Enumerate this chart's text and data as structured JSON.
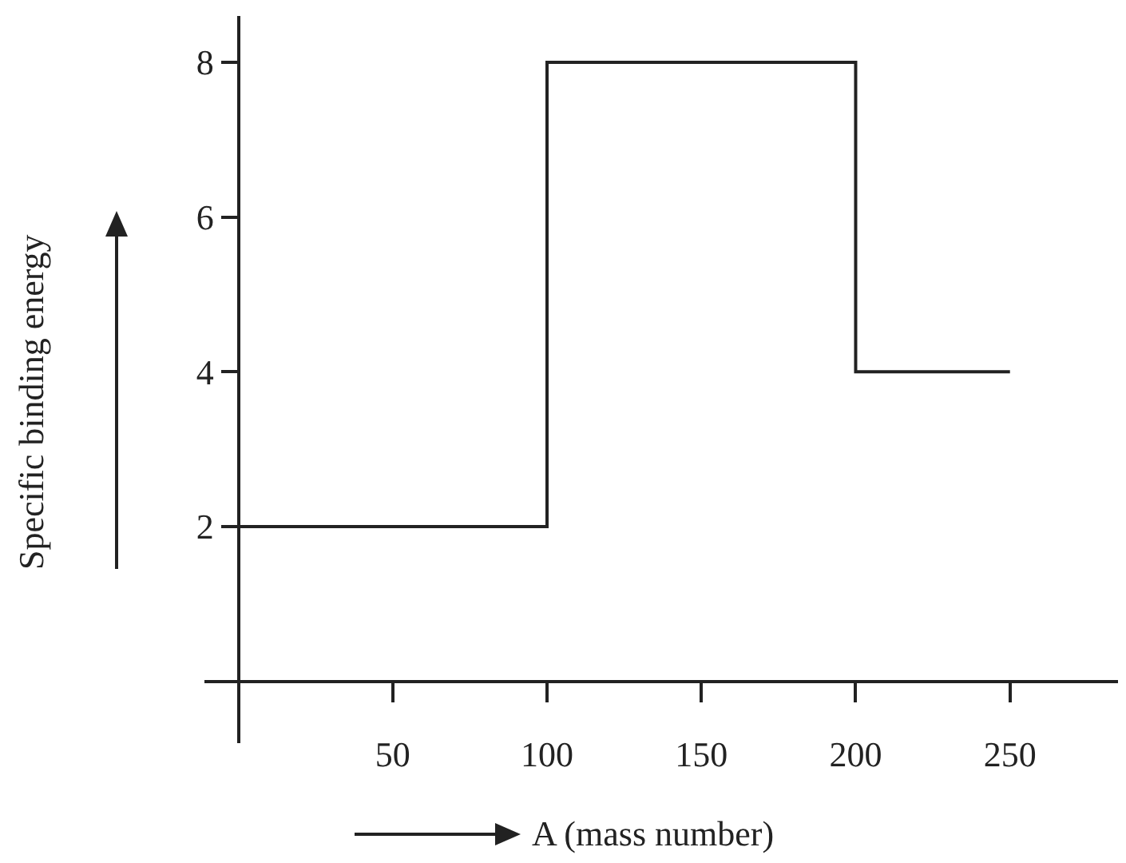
{
  "chart_data": {
    "type": "step",
    "xlabel": "A (mass number)",
    "ylabel": "Specific binding energy",
    "x": [
      0,
      100,
      200,
      250
    ],
    "series": [
      {
        "color": "#222222",
        "values": [
          2,
          8,
          4,
          4
        ]
      }
    ],
    "xlim": [
      -11,
      285
    ],
    "ylim": [
      -0.8,
      8.6
    ],
    "xticks": [
      50,
      100,
      150,
      200,
      250
    ],
    "yticks": [
      2,
      4,
      6,
      8
    ]
  }
}
